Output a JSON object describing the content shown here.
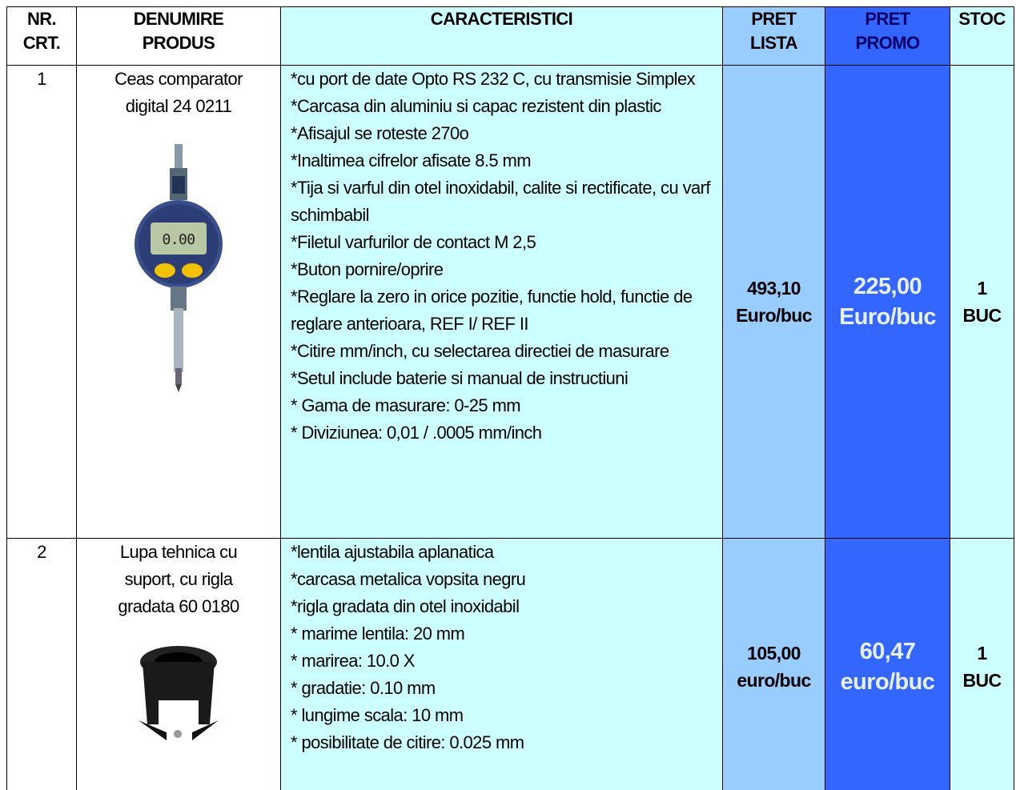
{
  "header": {
    "columns": [
      [
        "NR.",
        "CRT."
      ],
      [
        "DENUMIRE",
        "PRODUS"
      ],
      [
        "CARACTERISTICI"
      ],
      [
        "PRET",
        "LISTA"
      ],
      [
        "PRET",
        "PROMO"
      ],
      [
        "STOC"
      ]
    ]
  },
  "rows": [
    {
      "nr": "1",
      "name": [
        "Ceas comparator",
        "digital 24 0211"
      ],
      "features": [
        "*cu port de date Opto RS 232 C, cu transmisie Simplex",
        "*Carcasa din aluminiu si capac rezistent din plastic",
        "*Afisajul se roteste 270o",
        "*Inaltimea cifrelor afisate 8.5 mm",
        "*Tija si varful din otel inoxidabil, calite si rectificate, cu varf schimbabil",
        "*Filetul varfurilor de contact M 2,5",
        "*Buton pornire/oprire",
        "*Reglare la zero in orice pozitie, functie hold, functie de reglare anterioara, REF I/ REF II",
        "*Citire mm/inch, cu selectarea directiei de masurare",
        "*Setul include baterie si manual de instructiuni",
        "* Gama de masurare: 0-25 mm",
        "* Diviziunea: 0,01 / .0005 mm/inch"
      ],
      "price_list": [
        "493,10",
        "Euro/buc"
      ],
      "price_promo": [
        "225,00",
        "Euro/buc"
      ],
      "stock": [
        "1",
        "BUC"
      ]
    },
    {
      "nr": "2",
      "name": [
        "Lupa tehnica cu",
        "suport, cu rigla",
        "gradata 60 0180"
      ],
      "features": [
        "*lentila ajustabila aplanatica",
        "*carcasa metalica vopsita negru",
        "*rigla gradata din otel inoxidabil",
        "* marime lentila: 20 mm",
        "* marirea: 10.0 X",
        "* gradatie: 0.10 mm",
        "* lungime scala: 10 mm",
        "* posibilitate de citire: 0.025 mm"
      ],
      "price_list": [
        "105,00",
        "euro/buc"
      ],
      "price_promo": [
        "60,47",
        "euro/buc"
      ],
      "stock": [
        "1",
        "BUC"
      ]
    }
  ]
}
